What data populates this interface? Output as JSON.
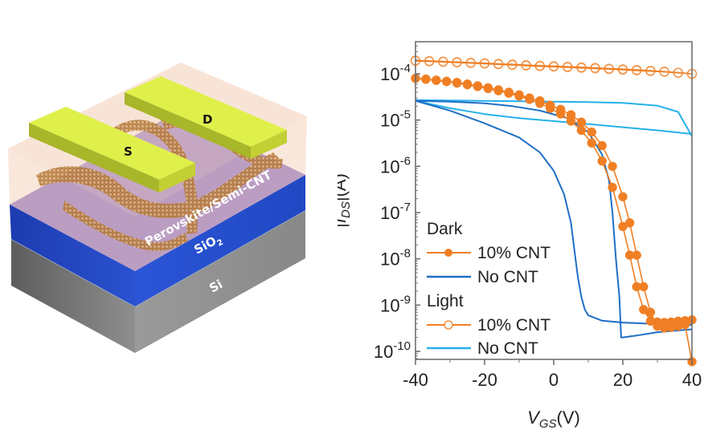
{
  "figure": {
    "device_schematic": {
      "electrodes": [
        {
          "name": "source",
          "label": "S"
        },
        {
          "name": "drain",
          "label": "D"
        }
      ],
      "layers": [
        {
          "name": "channel",
          "label": "Perovskite/Semi-CNT",
          "color": "#e9b79a"
        },
        {
          "name": "dielectric",
          "label": "SiO",
          "subscript": "2",
          "color": "#2848c0"
        },
        {
          "name": "substrate",
          "label": "Si",
          "color": "#8a8a8a"
        }
      ],
      "electrode_color": "#d8ec3a"
    },
    "colors": {
      "orange": "#f07f24",
      "dark_blue": "#1f6fc6",
      "light_blue": "#26b0ea",
      "axis": "#555555",
      "text": "#222222"
    }
  },
  "chart_data": {
    "type": "line",
    "title": "",
    "xlabel": {
      "main": "V",
      "sub": "GS",
      "unit": "(V)"
    },
    "ylabel": {
      "prefix": "|",
      "main": "I",
      "sub": "DS",
      "unit": "|(A)"
    },
    "xlim": [
      -40,
      40
    ],
    "ylim_log10": [
      -10.35,
      -3.55
    ],
    "yscale": "log",
    "grid": false,
    "legend_position": "bottom-left",
    "x_ticks": [
      -40,
      -20,
      0,
      20,
      40
    ],
    "x_tick_labels": [
      "-40",
      "-20",
      "0",
      "20",
      "40"
    ],
    "y_ticks_exp": [
      -4,
      -5,
      -6,
      -7,
      -8,
      -9,
      -10
    ],
    "y_tick_labels": [
      {
        "base": "10",
        "exp": "-4"
      },
      {
        "base": "10",
        "exp": "-5"
      },
      {
        "base": "10",
        "exp": "-6"
      },
      {
        "base": "10",
        "exp": "-7"
      },
      {
        "base": "10",
        "exp": "-8"
      },
      {
        "base": "10",
        "exp": "-9"
      },
      {
        "base": "10",
        "exp": "-10"
      }
    ],
    "legend": {
      "groups": [
        {
          "title": "Dark",
          "entries": [
            {
              "label": "10% CNT",
              "series": "dark_10cnt"
            },
            {
              "label": "No CNT",
              "series": "dark_nocnt"
            }
          ]
        },
        {
          "title": "Light",
          "entries": [
            {
              "label": "10% CNT",
              "series": "light_10cnt"
            },
            {
              "label": "No CNT",
              "series": "light_nocnt"
            }
          ]
        }
      ]
    },
    "series": [
      {
        "id": "light_10cnt",
        "name": "Light 10% CNT",
        "color": "#f07f24",
        "marker": "open-circle",
        "x": [
          -40,
          -36,
          -32,
          -28,
          -24,
          -20,
          -16,
          -12,
          -8,
          -4,
          0,
          4,
          8,
          12,
          16,
          20,
          24,
          28,
          32,
          36,
          40
        ],
        "y": [
          0.00019,
          0.000185,
          0.00018,
          0.000175,
          0.00017,
          0.000165,
          0.00016,
          0.000155,
          0.00015,
          0.000145,
          0.000142,
          0.000138,
          0.000134,
          0.00013,
          0.000126,
          0.000122,
          0.000118,
          0.000114,
          0.00011,
          0.000105,
          0.0001
        ],
        "y_return": [
          0.000195,
          0.00019,
          0.000185,
          0.00018,
          0.000175,
          0.00017,
          0.000165,
          0.00016,
          0.000155,
          0.00015,
          0.000147,
          0.000143,
          0.000139,
          0.000135,
          0.00013,
          0.000126,
          0.000122,
          0.000117,
          0.000112,
          0.000106,
          0.0001
        ]
      },
      {
        "id": "dark_10cnt",
        "name": "Dark 10% CNT",
        "color": "#f07f24",
        "marker": "filled-circle",
        "x": [
          -40,
          -37,
          -34,
          -31,
          -28,
          -25,
          -22,
          -19,
          -16,
          -13,
          -10,
          -7,
          -4,
          -1,
          2,
          5,
          8,
          11,
          14,
          17,
          20,
          22,
          24,
          26,
          28,
          30,
          32,
          34,
          36,
          38,
          40
        ],
        "y": [
          8e-05,
          7.6e-05,
          7.2e-05,
          6.8e-05,
          6.3e-05,
          5.8e-05,
          5.3e-05,
          4.8e-05,
          4.3e-05,
          3.8e-05,
          3.3e-05,
          2.8e-05,
          2.3e-05,
          1.8e-05,
          1.35e-05,
          9.5e-06,
          6e-06,
          3.2e-06,
          1.3e-06,
          3.5e-07,
          5e-08,
          1.2e-08,
          2.5e-09,
          8e-10,
          4.5e-10,
          4.3e-10,
          4.2e-10,
          4.3e-10,
          4.5e-10,
          4.6e-10,
          4.8e-10
        ],
        "y_return": [
          8e-05,
          7.7e-05,
          7.3e-05,
          6.9e-05,
          6.5e-05,
          6e-05,
          5.5e-05,
          5e-05,
          4.5e-05,
          4e-05,
          3.5e-05,
          3e-05,
          2.6e-05,
          2.1e-05,
          1.7e-05,
          1.3e-05,
          9e-06,
          5.5e-06,
          2.8e-06,
          1e-06,
          2.2e-07,
          6e-08,
          1.2e-08,
          2.5e-09,
          7e-10,
          3.5e-10,
          3.2e-10,
          3.3e-10,
          3.5e-10,
          3.8e-10,
          6e-11
        ]
      },
      {
        "id": "dark_nocnt",
        "name": "Dark No CNT",
        "color": "#1f6fc6",
        "marker": "none",
        "x": [
          -40,
          -30,
          -20,
          -10,
          -4,
          0,
          3,
          5,
          6,
          7,
          8,
          9,
          10,
          14,
          20,
          30,
          40
        ],
        "y": [
          2.6e-05,
          1.6e-05,
          8.5e-06,
          4.2e-06,
          2e-06,
          8e-07,
          2.5e-07,
          6e-08,
          1.5e-08,
          4e-09,
          1.5e-09,
          8e-10,
          6e-10,
          4.6e-10,
          4.2e-10,
          3.9e-10,
          3.7e-10
        ],
        "x_return": [
          40,
          30,
          24,
          20,
          19.5,
          19,
          18,
          17,
          16,
          14,
          10,
          4,
          -4,
          -12,
          -20,
          -30,
          -40
        ],
        "y_return": [
          3e-10,
          2.6e-10,
          2.2e-10,
          2e-10,
          2e-10,
          1.5e-09,
          1e-08,
          1e-07,
          5e-07,
          1.8e-06,
          5.5e-06,
          1.1e-05,
          1.6e-05,
          2e-05,
          2.3e-05,
          2.5e-05,
          2.6e-05
        ]
      },
      {
        "id": "light_nocnt",
        "name": "Light No CNT",
        "color": "#26b0ea",
        "marker": "none",
        "x": [
          -40,
          -30,
          -20,
          -10,
          0,
          10,
          20,
          30,
          36,
          40
        ],
        "y": [
          2.7e-05,
          2.65e-05,
          2.6e-05,
          2.55e-05,
          2.5e-05,
          2.45e-05,
          2.35e-05,
          2.05e-05,
          1.5e-05,
          4.5e-06
        ],
        "x_return": [
          40,
          30,
          20,
          10,
          0,
          -10,
          -20,
          -30,
          -40
        ],
        "y_return": [
          5e-06,
          6e-06,
          7e-06,
          8.2e-06,
          9.5e-06,
          1.1e-05,
          1.35e-05,
          1.8e-05,
          2.6e-05
        ]
      }
    ]
  }
}
